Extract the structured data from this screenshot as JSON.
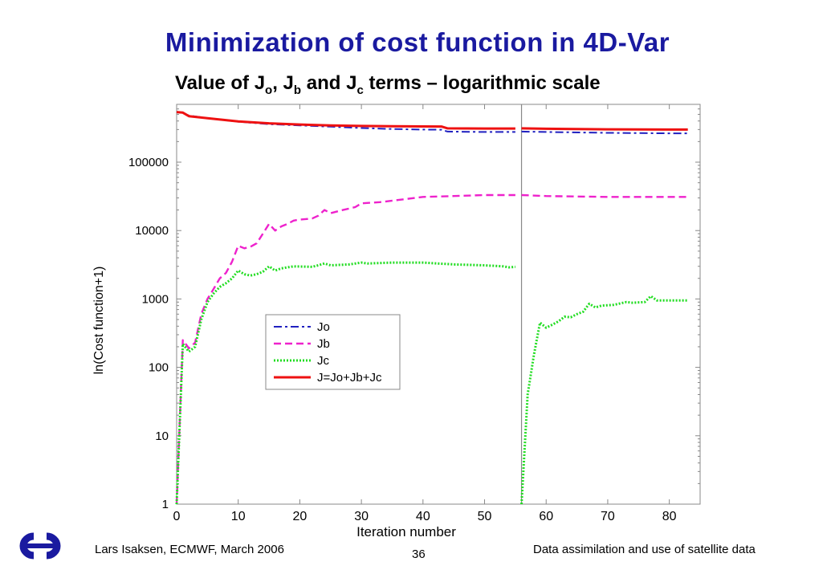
{
  "slide": {
    "title": "Minimization of cost function in 4D-Var",
    "subtitle_pre": "Value of J",
    "subtitle_sub1": "o",
    "subtitle_mid1": ", J",
    "subtitle_sub2": "b",
    "subtitle_mid2": " and J",
    "subtitle_sub3": "c",
    "subtitle_post": " terms – logarithmic scale"
  },
  "footer": {
    "left": "Lars Isaksen, ECMWF, March 2006",
    "page": "36",
    "right": "Data assimilation and use of satellite data"
  },
  "chart_data": {
    "type": "line",
    "xlabel": "Iteration number",
    "ylabel": "ln(Cost function+1)",
    "yscale": "log",
    "xlim": [
      0,
      85
    ],
    "ylim": [
      1,
      700000
    ],
    "x_ticks": [
      0,
      10,
      20,
      30,
      40,
      50,
      60,
      70,
      80
    ],
    "y_ticks": [
      1,
      10,
      100,
      1000,
      10000,
      100000
    ],
    "y_tick_labels": [
      "1",
      "10",
      "100",
      "1000",
      "10000",
      "100000"
    ],
    "segment_break": 56,
    "grid": false,
    "legend_position": "center-left",
    "series": [
      {
        "name": "Jo",
        "color": "#2020c0",
        "dash": "dashdot",
        "segments": [
          [
            [
              0,
              540000
            ],
            [
              1,
              530000
            ],
            [
              2,
              480000
            ],
            [
              5,
              440000
            ],
            [
              10,
              390000
            ],
            [
              15,
              360000
            ],
            [
              20,
              345000
            ],
            [
              25,
              330000
            ],
            [
              30,
              315000
            ],
            [
              35,
              305000
            ],
            [
              40,
              300000
            ],
            [
              43,
              298000
            ],
            [
              44,
              280000
            ],
            [
              50,
              276000
            ],
            [
              55,
              276000
            ]
          ],
          [
            [
              56,
              280000
            ],
            [
              60,
              276000
            ],
            [
              70,
              268000
            ],
            [
              80,
              264000
            ],
            [
              83,
              264000
            ]
          ]
        ]
      },
      {
        "name": "Jb",
        "color": "#ee22cc",
        "dash": "dashed",
        "segments": [
          [
            [
              0,
              1
            ],
            [
              1,
              250
            ],
            [
              2,
              190
            ],
            [
              3,
              230
            ],
            [
              4,
              600
            ],
            [
              5,
              1000
            ],
            [
              6,
              1400
            ],
            [
              7,
              2000
            ],
            [
              8,
              2400
            ],
            [
              9,
              3500
            ],
            [
              10,
              6000
            ],
            [
              11,
              5500
            ],
            [
              12,
              5800
            ],
            [
              13,
              6500
            ],
            [
              14,
              9000
            ],
            [
              15,
              12500
            ],
            [
              16,
              10000
            ],
            [
              17,
              11500
            ],
            [
              18,
              12500
            ],
            [
              19,
              14000
            ],
            [
              20,
              14500
            ],
            [
              22,
              15000
            ],
            [
              23,
              16500
            ],
            [
              24,
              20000
            ],
            [
              25,
              18000
            ],
            [
              27,
              20000
            ],
            [
              29,
              22000
            ],
            [
              30,
              25000
            ],
            [
              33,
              26000
            ],
            [
              36,
              28000
            ],
            [
              40,
              31000
            ],
            [
              45,
              32000
            ],
            [
              50,
              33000
            ],
            [
              55,
              33000
            ]
          ],
          [
            [
              56,
              33000
            ],
            [
              60,
              32000
            ],
            [
              70,
              31000
            ],
            [
              83,
              31000
            ]
          ]
        ]
      },
      {
        "name": "Jc",
        "color": "#22dd22",
        "dash": "dotted",
        "segments": [
          [
            [
              0,
              1
            ],
            [
              1,
              220
            ],
            [
              2,
              170
            ],
            [
              3,
              200
            ],
            [
              4,
              500
            ],
            [
              5,
              900
            ],
            [
              6,
              1200
            ],
            [
              7,
              1500
            ],
            [
              8,
              1700
            ],
            [
              9,
              2000
            ],
            [
              10,
              2600
            ],
            [
              11,
              2300
            ],
            [
              12,
              2200
            ],
            [
              13,
              2300
            ],
            [
              14,
              2500
            ],
            [
              15,
              3000
            ],
            [
              16,
              2600
            ],
            [
              17,
              2800
            ],
            [
              18,
              2900
            ],
            [
              19,
              3000
            ],
            [
              22,
              2950
            ],
            [
              23,
              3100
            ],
            [
              24,
              3300
            ],
            [
              25,
              3100
            ],
            [
              28,
              3200
            ],
            [
              30,
              3400
            ],
            [
              31,
              3300
            ],
            [
              35,
              3400
            ],
            [
              40,
              3400
            ],
            [
              45,
              3200
            ],
            [
              50,
              3100
            ],
            [
              53,
              3000
            ],
            [
              54,
              2900
            ],
            [
              55,
              2950
            ]
          ],
          [
            [
              56,
              1
            ],
            [
              57,
              40
            ],
            [
              58,
              150
            ],
            [
              59,
              450
            ],
            [
              60,
              380
            ],
            [
              61,
              420
            ],
            [
              62,
              470
            ],
            [
              63,
              550
            ],
            [
              64,
              540
            ],
            [
              65,
              600
            ],
            [
              66,
              650
            ],
            [
              67,
              850
            ],
            [
              68,
              750
            ],
            [
              69,
              800
            ],
            [
              71,
              820
            ],
            [
              73,
              900
            ],
            [
              74,
              880
            ],
            [
              76,
              900
            ],
            [
              77,
              1100
            ],
            [
              78,
              950
            ],
            [
              80,
              950
            ],
            [
              83,
              950
            ]
          ]
        ]
      },
      {
        "name": "J=Jo+Jb+Jc",
        "color": "#ee1111",
        "dash": "solid",
        "segments": [
          [
            [
              0,
              540000
            ],
            [
              1,
              530000
            ],
            [
              2,
              470000
            ],
            [
              5,
              440000
            ],
            [
              10,
              395000
            ],
            [
              15,
              370000
            ],
            [
              20,
              355000
            ],
            [
              25,
              345000
            ],
            [
              30,
              338000
            ],
            [
              35,
              335000
            ],
            [
              40,
              333000
            ],
            [
              43,
              332000
            ],
            [
              44,
              312000
            ],
            [
              50,
              310000
            ],
            [
              55,
              310000
            ]
          ],
          [
            [
              56,
              312000
            ],
            [
              60,
              308000
            ],
            [
              70,
              302000
            ],
            [
              80,
              300000
            ],
            [
              83,
              300000
            ]
          ]
        ]
      }
    ]
  },
  "colors": {
    "title": "#1a1aa0",
    "axis": "#888888",
    "logo": "#1a1aa0"
  },
  "icons": {
    "logo": "ecmwf-logo-icon"
  }
}
